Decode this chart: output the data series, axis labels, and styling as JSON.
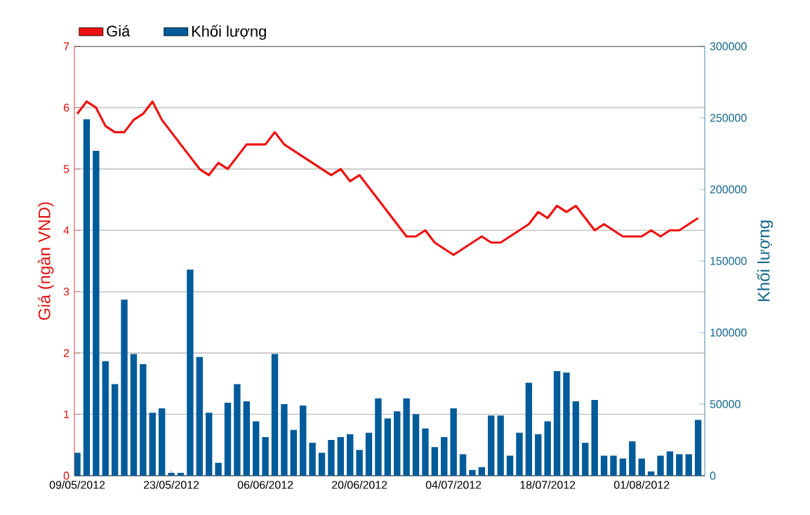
{
  "chart_data": {
    "type": "line",
    "categories": [
      "09/05/2012",
      null,
      null,
      null,
      null,
      null,
      null,
      null,
      null,
      null,
      "23/05/2012",
      null,
      null,
      null,
      null,
      null,
      null,
      null,
      null,
      null,
      "06/06/2012",
      null,
      null,
      null,
      null,
      null,
      null,
      null,
      null,
      null,
      "20/06/2012",
      null,
      null,
      null,
      null,
      null,
      null,
      null,
      null,
      null,
      "04/07/2012",
      null,
      null,
      null,
      null,
      null,
      null,
      null,
      null,
      null,
      "18/07/2012",
      null,
      null,
      null,
      null,
      null,
      null,
      null,
      null,
      null,
      "01/08/2012",
      null,
      null,
      null,
      null,
      null,
      null
    ],
    "series": [
      {
        "name": "Khối lượng",
        "type": "bar",
        "axis": "y2",
        "color": "#005b9a",
        "values": [
          16000,
          249000,
          227000,
          80000,
          64000,
          123000,
          85000,
          78000,
          44000,
          47000,
          2000,
          2000,
          144000,
          83000,
          44000,
          9000,
          51000,
          64000,
          52000,
          38000,
          27000,
          85000,
          50000,
          32000,
          49000,
          23000,
          16000,
          25000,
          27000,
          29000,
          18000,
          30000,
          54000,
          40000,
          45000,
          54000,
          43000,
          33000,
          20000,
          27000,
          47000,
          15000,
          4000,
          6000,
          42000,
          42000,
          14000,
          30000,
          65000,
          29000,
          38000,
          73000,
          72000,
          52000,
          23000,
          53000,
          14000,
          14000,
          12000,
          24000,
          12000,
          3000,
          14000,
          17000,
          15000,
          15000,
          39000
        ]
      },
      {
        "name": "Giá",
        "axis": "y",
        "color": "#ee1111",
        "values": [
          5.9,
          6.1,
          6.0,
          5.7,
          5.6,
          5.6,
          5.8,
          5.9,
          6.1,
          5.8,
          5.6,
          5.4,
          5.2,
          5.0,
          4.9,
          5.1,
          5.0,
          5.2,
          5.4,
          5.4,
          5.4,
          5.6,
          5.4,
          5.3,
          5.2,
          5.1,
          5.0,
          4.9,
          5.0,
          4.8,
          4.9,
          4.7,
          4.5,
          4.3,
          4.1,
          3.9,
          3.9,
          4.0,
          3.8,
          3.7,
          3.6,
          3.7,
          3.8,
          3.9,
          3.8,
          3.8,
          3.9,
          4.0,
          4.1,
          4.3,
          4.2,
          4.4,
          4.3,
          4.4,
          4.2,
          4.0,
          4.1,
          4.0,
          3.9,
          3.9,
          3.9,
          4.0,
          3.9,
          4.0,
          4.0,
          4.1,
          4.2
        ]
      }
    ],
    "ylabel": "Giá (ngàn VND)",
    "y2label": "Khối lượng",
    "ylim": [
      0,
      7
    ],
    "yticks": [
      0,
      1,
      2,
      3,
      4,
      5,
      6,
      7
    ],
    "y2lim": [
      0,
      300000
    ],
    "y2ticks": [
      0,
      50000,
      100000,
      150000,
      200000,
      250000,
      300000
    ],
    "grid": "y",
    "legend": "top left"
  }
}
